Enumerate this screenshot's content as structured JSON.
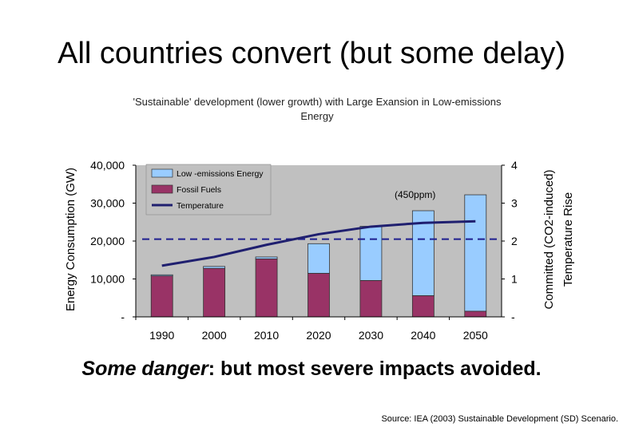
{
  "slide": {
    "title": "All countries convert (but some delay)",
    "tagline_emphasis": "Some danger",
    "tagline_rest": ": but most severe impacts avoided.",
    "source": "Source: IEA (2003) Sustainable Development (SD) Scenario."
  },
  "chart_data": {
    "type": "bar",
    "stacked": true,
    "title": "'Sustainable' development (lower growth) with Large Exansion in Low-emissions Energy",
    "title_lines": [
      "'Sustainable' development (lower growth) with Large Exansion in Low-emissions",
      "Energy"
    ],
    "categories": [
      "1990",
      "2000",
      "2010",
      "2020",
      "2030",
      "2040",
      "2050"
    ],
    "series": [
      {
        "name": "Fossil Fuels",
        "color": "#993366",
        "values": [
          10800,
          12800,
          15300,
          11500,
          9600,
          5600,
          1500
        ]
      },
      {
        "name": "Low -emissions Energy",
        "color": "#99ccff",
        "values": [
          300,
          500,
          500,
          7800,
          14300,
          22400,
          30700
        ]
      }
    ],
    "line_series": {
      "name": "Temperature",
      "color": "#1f1f6f",
      "axis": "right",
      "values": [
        1.35,
        1.58,
        1.9,
        2.18,
        2.38,
        2.48,
        2.52
      ]
    },
    "threshold": {
      "label": "(450ppm)",
      "value": 2.05,
      "axis": "right",
      "color": "#1f1f8f"
    },
    "ylabel": "Energy Consumption (GW)",
    "ylabel_right_lines": [
      "Committed (CO2-induced)",
      "Temperature Rise"
    ],
    "ylim": [
      0,
      40000
    ],
    "ylim_right": [
      0,
      4
    ],
    "y_ticks": [
      {
        "value": 0,
        "label": "-"
      },
      {
        "value": 10000,
        "label": "10,000"
      },
      {
        "value": 20000,
        "label": "20,000"
      },
      {
        "value": 30000,
        "label": "30,000"
      },
      {
        "value": 40000,
        "label": "40,000"
      }
    ],
    "y_ticks_right": [
      {
        "value": 0,
        "label": "-"
      },
      {
        "value": 1,
        "label": "1"
      },
      {
        "value": 2,
        "label": "2"
      },
      {
        "value": 3,
        "label": "3"
      },
      {
        "value": 4,
        "label": "4"
      }
    ],
    "legend": {
      "position": "top-left",
      "items": [
        {
          "label": "Low -emissions Energy",
          "kind": "box",
          "color": "#99ccff"
        },
        {
          "label": "Fossil Fuels",
          "kind": "box",
          "color": "#993366"
        },
        {
          "label": "Temperature",
          "kind": "line",
          "color": "#1f1f6f"
        }
      ]
    },
    "plot_background": "#c0c0c0",
    "grid": false
  }
}
